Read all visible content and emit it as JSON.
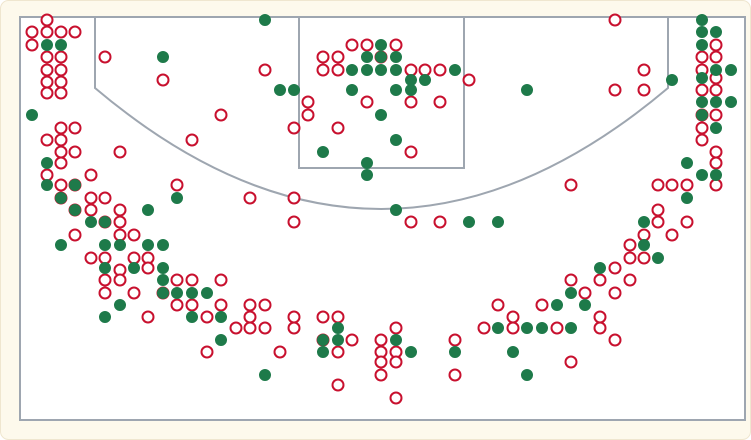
{
  "chart_data": {
    "type": "scatter",
    "xlim": [
      20,
      745
    ],
    "ylim": [
      420,
      17
    ],
    "marker": "circle",
    "series": [
      {
        "color": "#c8102e",
        "fill": "none",
        "x": [
          47,
          32,
          47,
          61,
          75,
          32,
          47,
          61,
          47,
          61,
          47,
          61,
          47,
          61,
          105,
          163,
          265,
          221,
          192,
          120,
          61,
          75,
          47,
          61,
          61,
          75,
          61,
          47,
          61,
          75,
          91,
          61,
          91,
          105,
          75,
          91,
          120,
          105,
          120,
          120,
          134,
          75,
          91,
          105,
          134,
          148,
          148,
          120,
          105,
          120,
          177,
          192,
          221,
          105,
          134,
          163,
          177,
          192,
          148,
          207,
          250,
          265,
          236,
          250,
          265,
          250,
          221,
          207,
          280,
          294,
          294,
          323,
          338,
          323,
          352,
          338,
          338,
          381,
          396,
          381,
          396,
          381,
          396,
          381,
          396,
          455,
          455,
          484,
          513,
          498,
          513,
          542,
          557,
          571,
          600,
          600,
          615,
          571,
          585,
          600,
          615,
          630,
          615,
          630,
          644,
          630,
          644,
          658,
          672,
          658,
          687,
          658,
          672,
          687,
          716,
          716,
          716,
          702,
          702,
          702,
          716,
          716,
          702,
          716,
          702,
          716,
          702,
          716,
          644,
          644,
          615,
          615,
          571,
          250,
          294,
          177,
          411,
          440,
          338,
          294,
          308,
          308,
          323,
          338,
          323,
          352,
          338,
          367,
          381,
          396,
          411,
          425,
          440,
          469,
          411,
          440,
          367,
          411,
          294
        ],
        "values": [
          20,
          32,
          32,
          32,
          32,
          45,
          57,
          57,
          70,
          70,
          82,
          82,
          93,
          93,
          57,
          80,
          70,
          115,
          140,
          152,
          128,
          128,
          140,
          140,
          152,
          152,
          163,
          175,
          185,
          185,
          175,
          198,
          198,
          198,
          210,
          210,
          210,
          222,
          222,
          235,
          235,
          235,
          258,
          258,
          258,
          258,
          268,
          270,
          280,
          280,
          280,
          280,
          280,
          293,
          293,
          293,
          305,
          305,
          317,
          317,
          305,
          305,
          328,
          328,
          328,
          317,
          305,
          352,
          352,
          317,
          328,
          317,
          317,
          340,
          340,
          352,
          385,
          340,
          328,
          352,
          352,
          362,
          362,
          375,
          398,
          340,
          375,
          328,
          317,
          305,
          328,
          305,
          328,
          362,
          317,
          328,
          340,
          280,
          293,
          280,
          293,
          280,
          268,
          258,
          258,
          245,
          235,
          222,
          235,
          210,
          222,
          185,
          185,
          185,
          185,
          163,
          152,
          140,
          128,
          115,
          115,
          90,
          90,
          78,
          70,
          57,
          57,
          45,
          90,
          70,
          90,
          20,
          185,
          198,
          222,
          185,
          222,
          222,
          128,
          128,
          115,
          102,
          70,
          70,
          57,
          45,
          57,
          45,
          57,
          45,
          70,
          70,
          70,
          80,
          102,
          102,
          102,
          152,
          198
        ]
      },
      {
        "color": "#1e7a4a",
        "fill": "solid",
        "x": [
          265,
          61,
          47,
          163,
          32,
          280,
          294,
          47,
          47,
          75,
          61,
          75,
          105,
          91,
          120,
          105,
          148,
          163,
          61,
          105,
          134,
          163,
          163,
          120,
          105,
          148,
          177,
          163,
          177,
          192,
          207,
          192,
          221,
          221,
          323,
          338,
          323,
          338,
          396,
          411,
          396,
          469,
          498,
          455,
          498,
          527,
          542,
          571,
          513,
          527,
          557,
          571,
          585,
          600,
          644,
          658,
          644,
          687,
          687,
          702,
          716,
          702,
          716,
          731,
          702,
          716,
          672,
          702,
          716,
          702,
          702,
          731,
          716,
          702,
          367,
          367,
          323,
          396,
          381,
          352,
          352,
          367,
          381,
          396,
          367,
          381,
          396,
          381,
          411,
          411,
          425,
          455,
          527,
          396,
          265
        ],
        "values": [
          20,
          45,
          45,
          57,
          115,
          90,
          90,
          163,
          185,
          185,
          198,
          210,
          222,
          222,
          245,
          245,
          245,
          245,
          245,
          268,
          268,
          268,
          280,
          305,
          317,
          210,
          198,
          293,
          293,
          293,
          293,
          317,
          317,
          340,
          340,
          328,
          352,
          340,
          340,
          352,
          210,
          222,
          222,
          352,
          328,
          328,
          328,
          328,
          352,
          375,
          305,
          293,
          305,
          268,
          222,
          258,
          245,
          198,
          163,
          175,
          175,
          102,
          102,
          102,
          115,
          128,
          80,
          20,
          32,
          32,
          45,
          70,
          70,
          78,
          163,
          175,
          152,
          140,
          115,
          90,
          70,
          70,
          70,
          70,
          57,
          57,
          57,
          45,
          80,
          90,
          80,
          70,
          90,
          90,
          375
        ]
      }
    ]
  }
}
